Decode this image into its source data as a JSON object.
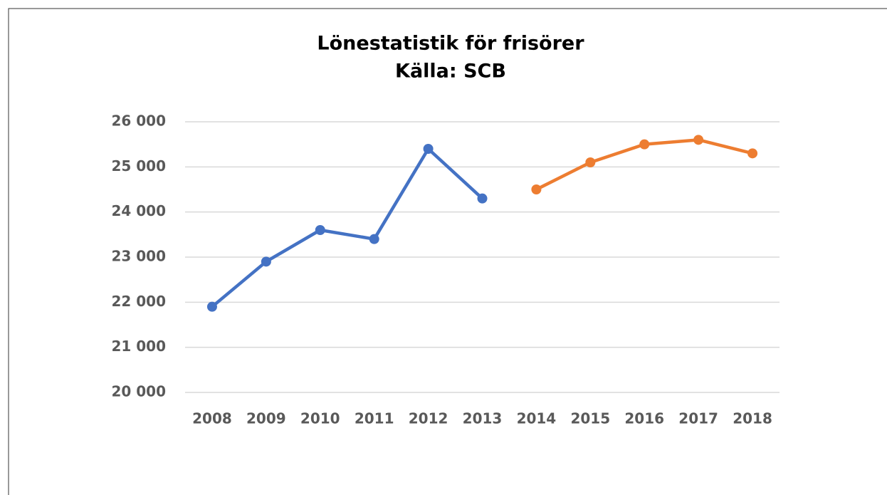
{
  "chart_data": {
    "type": "line",
    "title": "Lönestatistik för frisörer",
    "subtitle": "Källa: SCB",
    "categories": [
      "2008",
      "2009",
      "2010",
      "2011",
      "2012",
      "2013",
      "2014",
      "2015",
      "2016",
      "2017",
      "2018"
    ],
    "series": [
      {
        "color": "#4472c4",
        "values": [
          21900,
          22900,
          23600,
          23400,
          25400,
          24300,
          null,
          null,
          null,
          null,
          null
        ]
      },
      {
        "color": "#ed7d31",
        "values": [
          null,
          null,
          null,
          null,
          null,
          null,
          24500,
          25100,
          25500,
          25600,
          25300
        ]
      }
    ],
    "ylim": [
      20000,
      26000
    ],
    "yticks": [
      {
        "value": 20000,
        "label": "20 000"
      },
      {
        "value": 21000,
        "label": "21 000"
      },
      {
        "value": 22000,
        "label": "22 000"
      },
      {
        "value": 23000,
        "label": "23 000"
      },
      {
        "value": 24000,
        "label": "24 000"
      },
      {
        "value": 25000,
        "label": "25 000"
      },
      {
        "value": 26000,
        "label": "26 000"
      }
    ],
    "grid": true
  }
}
